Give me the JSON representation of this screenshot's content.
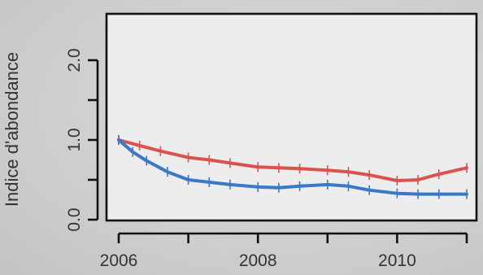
{
  "chart_data": {
    "type": "line",
    "ylabel": "Indice d'abondance",
    "xlabel": "",
    "title": "",
    "xlim": [
      2006,
      2011
    ],
    "ylim": [
      0,
      2.5
    ],
    "x_ticks": [
      2006,
      2007,
      2008,
      2009,
      2010,
      2011
    ],
    "x_tick_labels": [
      "2006",
      "",
      "2008",
      "",
      "2010",
      ""
    ],
    "y_ticks": [
      0,
      0.5,
      1.0,
      1.5,
      2.0
    ],
    "y_tick_labels": [
      "0.0",
      "",
      "1.0",
      "",
      "2.0"
    ],
    "grid": false,
    "legend": "none",
    "series": [
      {
        "color": "#d9534f",
        "x": [
          2006,
          2006.3,
          2006.6,
          2007,
          2007.3,
          2007.6,
          2008,
          2008.3,
          2008.6,
          2009,
          2009.3,
          2009.6,
          2010,
          2010.3,
          2010.6,
          2011
        ],
        "values": [
          1.0,
          0.93,
          0.86,
          0.78,
          0.75,
          0.71,
          0.66,
          0.65,
          0.64,
          0.62,
          0.6,
          0.56,
          0.49,
          0.5,
          0.57,
          0.65
        ]
      },
      {
        "color": "#3a78c8",
        "x": [
          2006,
          2006.2,
          2006.4,
          2006.7,
          2007,
          2007.3,
          2007.6,
          2008,
          2008.3,
          2008.6,
          2009,
          2009.3,
          2009.6,
          2010,
          2010.3,
          2010.6,
          2011
        ],
        "values": [
          1.0,
          0.85,
          0.74,
          0.6,
          0.5,
          0.47,
          0.44,
          0.41,
          0.4,
          0.42,
          0.44,
          0.42,
          0.37,
          0.33,
          0.32,
          0.32,
          0.32
        ]
      }
    ]
  }
}
